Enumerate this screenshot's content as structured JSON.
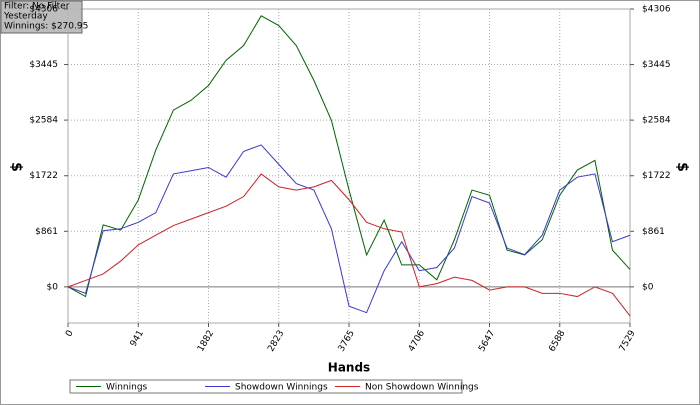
{
  "chart_data": {
    "type": "line",
    "info": [
      "Filter: No Filter",
      "Yesterday",
      "Winnings: $270.95"
    ],
    "xlabel": "Hands",
    "ylabel": "$",
    "y2label": "$",
    "x": [
      0,
      235,
      471,
      706,
      941,
      1176,
      1412,
      1647,
      1882,
      2117,
      2353,
      2588,
      2823,
      3058,
      3294,
      3529,
      3765,
      4000,
      4235,
      4471,
      4706,
      4941,
      5176,
      5412,
      5647,
      5882,
      6117,
      6353,
      6588,
      6823,
      7059,
      7294,
      7529
    ],
    "series": [
      {
        "name": "Winnings",
        "color": "#006400",
        "values": [
          0,
          -150,
          960,
          880,
          1345,
          2120,
          2740,
          2890,
          3120,
          3510,
          3740,
          4200,
          4050,
          3740,
          3200,
          2580,
          1500,
          495,
          1035,
          340,
          340,
          110,
          730,
          1500,
          1420,
          570,
          495,
          730,
          1420,
          1810,
          1960,
          570,
          270
        ]
      },
      {
        "name": "Showdown Winnings",
        "color": "#3a3ac8",
        "values": [
          0,
          -100,
          870,
          900,
          1000,
          1150,
          1750,
          1800,
          1850,
          1700,
          2100,
          2200,
          1900,
          1600,
          1500,
          900,
          -300,
          -400,
          250,
          700,
          250,
          300,
          600,
          1400,
          1300,
          600,
          500,
          800,
          1500,
          1700,
          1750,
          700,
          800
        ]
      },
      {
        "name": "Non Showdown Winnings",
        "color": "#cc2222",
        "values": [
          0,
          100,
          200,
          400,
          650,
          800,
          950,
          1050,
          1150,
          1250,
          1400,
          1750,
          1550,
          1500,
          1550,
          1650,
          1350,
          1000,
          900,
          850,
          0,
          50,
          150,
          100,
          -50,
          0,
          0,
          -100,
          -100,
          -150,
          0,
          -100,
          -450
        ]
      }
    ],
    "xlim": [
      0,
      7529
    ],
    "xticks": [
      0,
      941,
      1882,
      2823,
      3765,
      4706,
      5647,
      6588,
      7529
    ],
    "ylim": [
      -560,
      4306
    ],
    "yticks": [
      {
        "value": 0,
        "label": "$0"
      },
      {
        "value": 861,
        "label": "$861"
      },
      {
        "value": 1722,
        "label": "$1722"
      },
      {
        "value": 2584,
        "label": "$2584"
      },
      {
        "value": 3445,
        "label": "$3445"
      },
      {
        "value": 4306,
        "label": "$4306"
      }
    ],
    "y2lim": [
      -560,
      4306
    ],
    "y2ticks": [
      {
        "value": 0,
        "label": "$0"
      },
      {
        "value": 861,
        "label": "$861"
      },
      {
        "value": 1722,
        "label": "$1722"
      },
      {
        "value": 2584,
        "label": "$2584"
      },
      {
        "value": 3445,
        "label": "$3445"
      },
      {
        "value": 4306,
        "label": "$4306"
      }
    ],
    "grid": true
  }
}
